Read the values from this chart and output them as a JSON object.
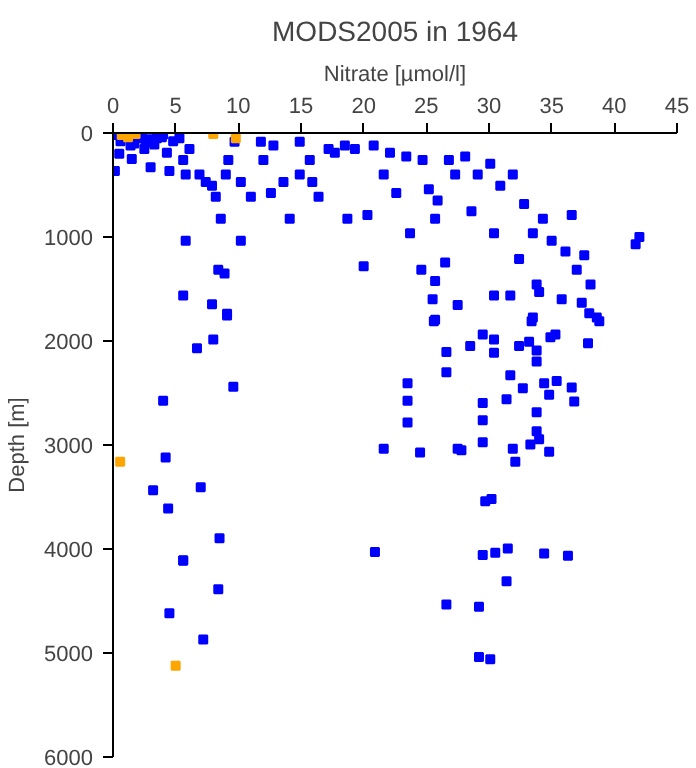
{
  "chart_data": {
    "type": "scatter",
    "title": "MODS2005 in 1964",
    "xlabel": "Nitrate [µmol/l]",
    "ylabel": "Depth [m]",
    "xlim": [
      0,
      45
    ],
    "xticks": [
      0,
      5,
      10,
      15,
      20,
      25,
      30,
      35,
      40,
      45
    ],
    "ylim": [
      6000,
      0
    ],
    "yticks": [
      0,
      1000,
      2000,
      3000,
      4000,
      5000,
      6000
    ],
    "grid": false,
    "marker": "square",
    "series": [
      {
        "color": "#0000ff",
        "x": [
          0.15,
          1.4,
          2.0,
          2.5,
          3.0,
          3.5,
          4.0,
          4.3,
          4.5,
          5.3,
          5.6,
          5.8,
          6.1,
          6.9,
          7.4,
          7.9,
          8.2,
          8.6,
          9.0,
          9.2,
          9.7,
          10.2,
          11.0,
          11.8,
          12.0,
          12.6,
          12.8,
          13.6,
          14.1,
          14.9,
          14.9,
          15.7,
          15.9,
          16.4,
          17.2,
          17.7,
          18.5,
          18.7,
          19.3,
          20.3,
          20.8,
          21.6,
          22.1,
          22.6,
          23.4,
          23.7,
          24.7,
          25.2,
          25.7,
          25.9,
          26.8,
          27.3,
          28.1,
          28.6,
          29.1,
          30.1,
          30.4,
          30.9,
          31.9,
          32.4,
          32.8,
          33.5,
          33.8,
          34.3,
          35.0,
          36.1,
          36.6,
          37.0,
          37.6,
          38.1,
          38.6,
          41.7,
          42.0,
          5.8,
          10.2,
          8.4,
          8.9,
          5.6,
          7.9,
          9.1,
          20.0,
          24.6,
          25.5,
          27.5,
          30.4,
          31.7,
          33.5,
          34.0,
          35.8,
          37.4,
          25.7,
          25.7,
          26.5,
          6.7,
          8.0,
          9.1,
          4.0,
          9.6,
          4.2,
          3.2,
          7.0,
          4.4,
          8.5,
          5.6,
          20.9,
          21.6,
          24.5,
          23.5,
          23.5,
          23.5,
          25.6,
          26.6,
          26.6,
          27.5,
          27.8,
          28.5,
          29.5,
          30.4,
          30.4,
          29.5,
          29.5,
          29.5,
          29.7,
          30.2,
          31.4,
          31.7,
          31.9,
          32.1,
          32.4,
          33.2,
          33.4,
          33.8,
          33.8,
          33.8,
          33.8,
          32.7,
          33.3,
          34.0,
          34.4,
          34.8,
          34.8,
          34.9,
          35.3,
          35.4,
          36.6,
          36.8,
          37.9,
          38.0,
          38.8,
          30.5,
          29.5,
          31.5,
          34.4,
          36.3,
          5.6,
          4.5,
          8.4,
          7.2,
          26.6,
          29.2,
          29.2,
          30.1,
          31.4,
          0.3,
          0.6,
          1.7,
          2.3,
          2.8,
          3.3,
          3.9,
          4.8,
          0.5,
          1.5,
          2.6
        ],
        "values": [
          366,
          120,
          50,
          155,
          330,
          50,
          15,
          190,
          366,
          50,
          260,
          400,
          155,
          400,
          470,
          507,
          612,
          824,
          400,
          260,
          85,
          470,
          612,
          85,
          260,
          577,
          120,
          470,
          824,
          85,
          400,
          260,
          470,
          612,
          155,
          190,
          120,
          824,
          155,
          788,
          120,
          400,
          190,
          577,
          225,
          964,
          260,
          542,
          824,
          648,
          260,
          400,
          225,
          753,
          400,
          296,
          964,
          507,
          400,
          1211,
          683,
          964,
          1457,
          824,
          1035,
          1140,
          788,
          1316,
          1175,
          1457,
          1774,
          1070,
          1000,
          1035,
          1035,
          1316,
          1352,
          1563,
          1647,
          1739,
          1281,
          1316,
          1598,
          1654,
          1563,
          1563,
          1774,
          1528,
          1598,
          1633,
          1795,
          1422,
          1246,
          2070,
          1986,
          1755,
          2574,
          2441,
          3120,
          3435,
          3407,
          3610,
          3897,
          4107,
          4030,
          3036,
          3071,
          2406,
          2574,
          2784,
          1811,
          2105,
          2301,
          3036,
          3050,
          2049,
          1937,
          1986,
          2112,
          2595,
          2763,
          2973,
          3540,
          3519,
          2560,
          2329,
          3036,
          3162,
          2049,
          2007,
          1811,
          2091,
          2196,
          2686,
          2868,
          2455,
          2994,
          2945,
          2406,
          2518,
          3064,
          1965,
          1937,
          2385,
          2448,
          2581,
          2021,
          1734,
          1811,
          4037,
          4058,
          3995,
          4044,
          4065,
          4112,
          4618,
          4386,
          4870,
          4534,
          4555,
          5039,
          5060,
          4309,
          20,
          80,
          100,
          20,
          60,
          110,
          40,
          80,
          200,
          250,
          90
        ]
      },
      {
        "color": "#ffa500",
        "x": [
          0.7,
          1.2,
          1.8,
          8.0,
          9.8,
          0.57,
          5.0
        ],
        "values": [
          20,
          40,
          10,
          10,
          50,
          3162,
          5123
        ]
      }
    ]
  }
}
